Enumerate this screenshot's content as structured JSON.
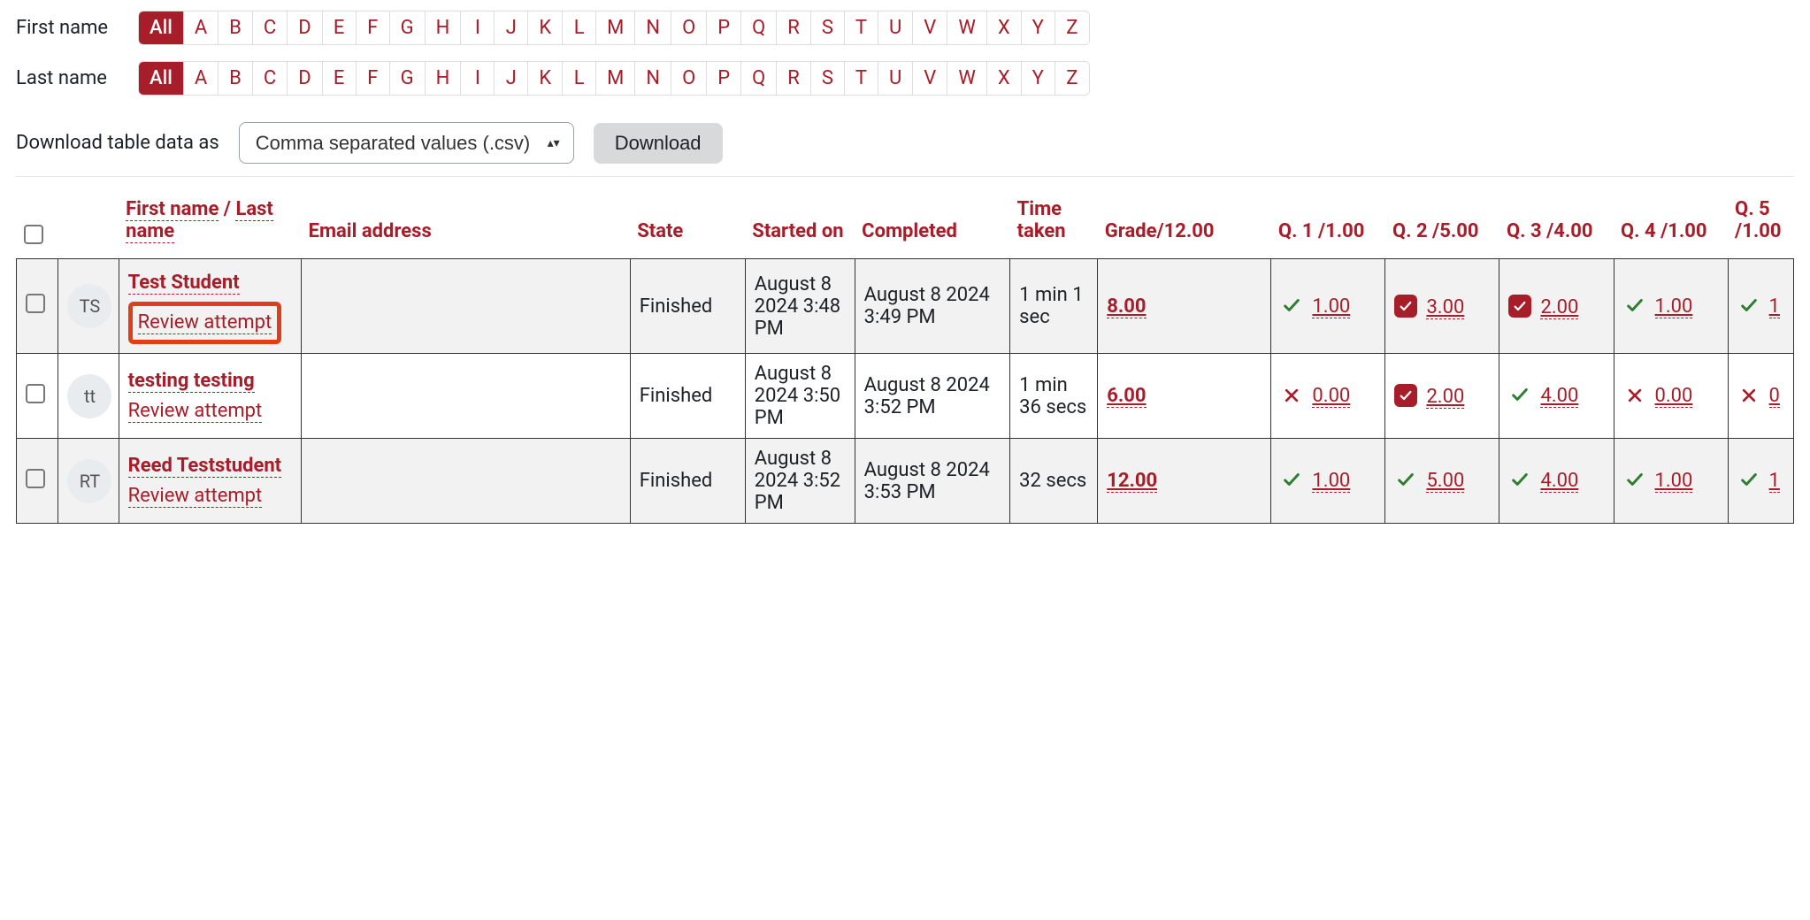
{
  "colors": {
    "accent": "#a71d2a",
    "highlight_border": "#e03e1a",
    "check_green": "#2e7d32",
    "button_bg": "#d7d9db",
    "row_alt_bg": "#f2f2f2"
  },
  "filters": {
    "first_name": {
      "label": "First name",
      "active": "All",
      "letters": [
        "All",
        "A",
        "B",
        "C",
        "D",
        "E",
        "F",
        "G",
        "H",
        "I",
        "J",
        "K",
        "L",
        "M",
        "N",
        "O",
        "P",
        "Q",
        "R",
        "S",
        "T",
        "U",
        "V",
        "W",
        "X",
        "Y",
        "Z"
      ]
    },
    "last_name": {
      "label": "Last name",
      "active": "All",
      "letters": [
        "All",
        "A",
        "B",
        "C",
        "D",
        "E",
        "F",
        "G",
        "H",
        "I",
        "J",
        "K",
        "L",
        "M",
        "N",
        "O",
        "P",
        "Q",
        "R",
        "S",
        "T",
        "U",
        "V",
        "W",
        "X",
        "Y",
        "Z"
      ]
    }
  },
  "download": {
    "label": "Download table data as",
    "selected_option": "Comma separated values (.csv)",
    "button": "Download"
  },
  "table": {
    "headers": {
      "first_last": {
        "first": "First name",
        "sep": " / ",
        "last": "Last name"
      },
      "email": "Email address",
      "state": "State",
      "started": "Started on",
      "completed": "Completed",
      "time": "Time taken",
      "grade": "Grade/12.00",
      "q1": "Q. 1 /1.00",
      "q2": "Q. 2 /5.00",
      "q3": "Q. 3 /4.00",
      "q4": "Q. 4 /1.00",
      "q5": "Q. 5 /1.00"
    },
    "review_label": "Review attempt",
    "rows": [
      {
        "initials": "TS",
        "name": "Test Student",
        "highlight_review": true,
        "email": "",
        "state": "Finished",
        "started": "August 8 2024 3:48 PM",
        "completed": "August 8 2024 3:49 PM",
        "time": "1 min 1 sec",
        "grade": "8.00",
        "q1": {
          "icon": "check",
          "score": "1.00"
        },
        "q2": {
          "icon": "partial",
          "score": "3.00"
        },
        "q3": {
          "icon": "partial",
          "score": "2.00"
        },
        "q4": {
          "icon": "check",
          "score": "1.00"
        },
        "q5": {
          "icon": "check",
          "score": "1"
        }
      },
      {
        "initials": "tt",
        "name": "testing testing",
        "highlight_review": false,
        "email": "",
        "state": "Finished",
        "started": "August 8 2024 3:50 PM",
        "completed": "August 8 2024 3:52 PM",
        "time": "1 min 36 secs",
        "grade": "6.00",
        "q1": {
          "icon": "cross",
          "score": "0.00"
        },
        "q2": {
          "icon": "partial",
          "score": "2.00"
        },
        "q3": {
          "icon": "check",
          "score": "4.00"
        },
        "q4": {
          "icon": "cross",
          "score": "0.00"
        },
        "q5": {
          "icon": "cross",
          "score": "0"
        }
      },
      {
        "initials": "RT",
        "name": "Reed Teststudent",
        "highlight_review": false,
        "email": "",
        "state": "Finished",
        "started": "August 8 2024 3:52 PM",
        "completed": "August 8 2024 3:53 PM",
        "time": "32 secs",
        "grade": "12.00",
        "q1": {
          "icon": "check",
          "score": "1.00"
        },
        "q2": {
          "icon": "check",
          "score": "5.00"
        },
        "q3": {
          "icon": "check",
          "score": "4.00"
        },
        "q4": {
          "icon": "check",
          "score": "1.00"
        },
        "q5": {
          "icon": "check",
          "score": "1"
        }
      }
    ]
  }
}
